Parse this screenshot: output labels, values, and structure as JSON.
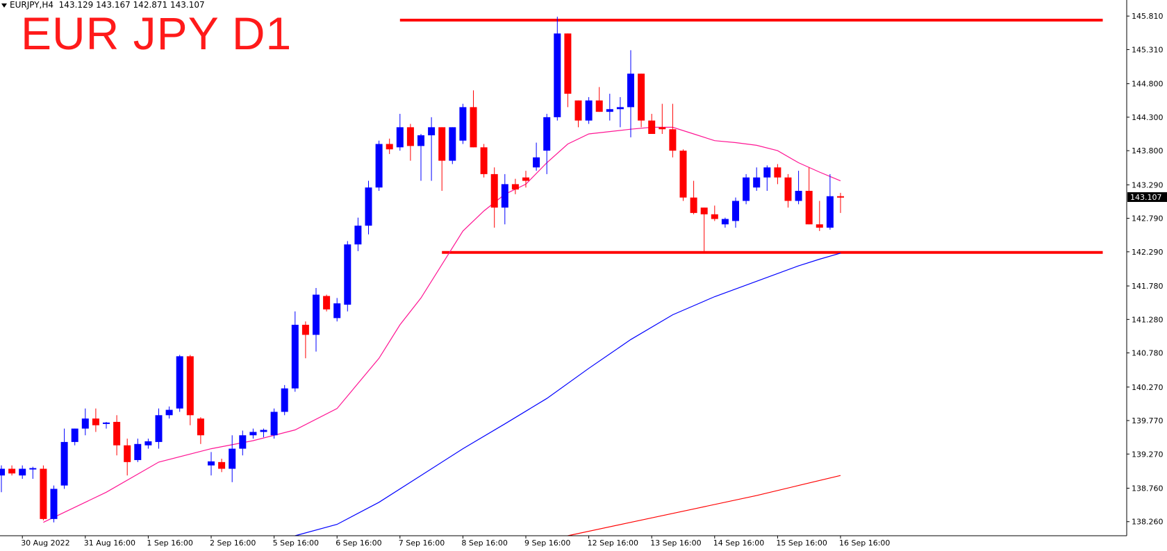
{
  "header": {
    "symbol": "EURJPY,H4",
    "ohlc": "143.129 143.167 142.871 143.107"
  },
  "title_overlay": "EUR JPY D1",
  "colors": {
    "bull": "#0000ff",
    "bear": "#ff0000",
    "ma_fast": "#ff1493",
    "ma_mid": "#0000ff",
    "ma_slow": "#ff0000",
    "levels": "#ff0000",
    "price_tag_bg": "#000000"
  },
  "chart_data": {
    "type": "candlestick",
    "title": "EUR JPY D1",
    "current_price_label": "143.107",
    "ylim": [
      138.05,
      146.05
    ],
    "y_ticks": [
      "145.810",
      "145.310",
      "144.800",
      "144.300",
      "143.800",
      "143.290",
      "142.790",
      "142.290",
      "141.780",
      "141.280",
      "140.780",
      "140.270",
      "139.770",
      "139.270",
      "138.760",
      "138.260"
    ],
    "x_labels": [
      "30 Aug 2022",
      "31 Aug 16:00",
      "1 Sep 16:00",
      "2 Sep 16:00",
      "5 Sep 16:00",
      "6 Sep 16:00",
      "7 Sep 16:00",
      "8 Sep 16:00",
      "9 Sep 16:00",
      "12 Sep 16:00",
      "13 Sep 16:00",
      "14 Sep 16:00",
      "15 Sep 16:00",
      "16 Sep 16:00"
    ],
    "x_label_bar_index": [
      2,
      8,
      14,
      20,
      26,
      32,
      38,
      44,
      50,
      56,
      62,
      68,
      74,
      80
    ],
    "candles": [
      {
        "o": 138.95,
        "h": 139.1,
        "l": 138.7,
        "c": 139.05
      },
      {
        "o": 139.05,
        "h": 139.1,
        "l": 138.95,
        "c": 138.98
      },
      {
        "o": 138.95,
        "h": 139.1,
        "l": 138.9,
        "c": 139.05
      },
      {
        "o": 139.05,
        "h": 139.08,
        "l": 138.9,
        "c": 139.06
      },
      {
        "o": 139.05,
        "h": 139.1,
        "l": 138.28,
        "c": 138.3
      },
      {
        "o": 138.3,
        "h": 138.8,
        "l": 138.25,
        "c": 138.75
      },
      {
        "o": 138.8,
        "h": 139.65,
        "l": 138.75,
        "c": 139.45
      },
      {
        "o": 139.45,
        "h": 139.65,
        "l": 139.4,
        "c": 139.65
      },
      {
        "o": 139.65,
        "h": 139.95,
        "l": 139.55,
        "c": 139.8
      },
      {
        "o": 139.8,
        "h": 139.95,
        "l": 139.6,
        "c": 139.7
      },
      {
        "o": 139.73,
        "h": 139.75,
        "l": 139.65,
        "c": 139.74
      },
      {
        "o": 139.75,
        "h": 139.85,
        "l": 139.25,
        "c": 139.4
      },
      {
        "o": 139.4,
        "h": 139.5,
        "l": 138.95,
        "c": 139.15
      },
      {
        "o": 139.18,
        "h": 139.5,
        "l": 139.15,
        "c": 139.42
      },
      {
        "o": 139.4,
        "h": 139.5,
        "l": 139.35,
        "c": 139.46
      },
      {
        "o": 139.45,
        "h": 139.95,
        "l": 139.35,
        "c": 139.85
      },
      {
        "o": 139.85,
        "h": 139.98,
        "l": 139.8,
        "c": 139.93
      },
      {
        "o": 139.95,
        "h": 140.75,
        "l": 139.9,
        "c": 140.73
      },
      {
        "o": 140.73,
        "h": 140.75,
        "l": 139.7,
        "c": 139.85
      },
      {
        "o": 139.8,
        "h": 139.82,
        "l": 139.42,
        "c": 139.55
      },
      {
        "o": 139.1,
        "h": 139.3,
        "l": 138.95,
        "c": 139.16
      },
      {
        "o": 139.15,
        "h": 139.2,
        "l": 139.0,
        "c": 139.05
      },
      {
        "o": 139.05,
        "h": 139.55,
        "l": 138.85,
        "c": 139.35
      },
      {
        "o": 139.35,
        "h": 139.62,
        "l": 139.25,
        "c": 139.55
      },
      {
        "o": 139.55,
        "h": 139.65,
        "l": 139.5,
        "c": 139.6
      },
      {
        "o": 139.6,
        "h": 139.65,
        "l": 139.52,
        "c": 139.63
      },
      {
        "o": 139.55,
        "h": 139.95,
        "l": 139.5,
        "c": 139.9
      },
      {
        "o": 139.9,
        "h": 140.3,
        "l": 139.85,
        "c": 140.25
      },
      {
        "o": 140.25,
        "h": 141.4,
        "l": 140.2,
        "c": 141.2
      },
      {
        "o": 141.2,
        "h": 141.25,
        "l": 140.7,
        "c": 141.05
      },
      {
        "o": 141.05,
        "h": 141.75,
        "l": 140.8,
        "c": 141.65
      },
      {
        "o": 141.63,
        "h": 141.65,
        "l": 141.4,
        "c": 141.43
      },
      {
        "o": 141.3,
        "h": 141.6,
        "l": 141.25,
        "c": 141.52
      },
      {
        "o": 141.5,
        "h": 142.45,
        "l": 141.4,
        "c": 142.4
      },
      {
        "o": 142.4,
        "h": 142.8,
        "l": 142.3,
        "c": 142.68
      },
      {
        "o": 142.68,
        "h": 143.35,
        "l": 142.55,
        "c": 143.25
      },
      {
        "o": 143.25,
        "h": 143.95,
        "l": 143.2,
        "c": 143.9
      },
      {
        "o": 143.9,
        "h": 143.98,
        "l": 143.75,
        "c": 143.82
      },
      {
        "o": 143.85,
        "h": 144.35,
        "l": 143.8,
        "c": 144.15
      },
      {
        "o": 144.15,
        "h": 144.2,
        "l": 143.65,
        "c": 143.87
      },
      {
        "o": 143.87,
        "h": 144.05,
        "l": 143.35,
        "c": 144.03
      },
      {
        "o": 144.03,
        "h": 144.3,
        "l": 143.35,
        "c": 144.15
      },
      {
        "o": 144.15,
        "h": 144.15,
        "l": 143.2,
        "c": 143.65
      },
      {
        "o": 143.65,
        "h": 144.15,
        "l": 143.6,
        "c": 144.15
      },
      {
        "o": 143.95,
        "h": 144.5,
        "l": 143.9,
        "c": 144.45
      },
      {
        "o": 144.45,
        "h": 144.7,
        "l": 143.85,
        "c": 143.85
      },
      {
        "o": 143.85,
        "h": 143.9,
        "l": 143.4,
        "c": 143.45
      },
      {
        "o": 143.45,
        "h": 143.55,
        "l": 142.65,
        "c": 142.95
      },
      {
        "o": 142.95,
        "h": 143.45,
        "l": 142.7,
        "c": 143.3
      },
      {
        "o": 143.3,
        "h": 143.38,
        "l": 143.15,
        "c": 143.22
      },
      {
        "o": 143.4,
        "h": 143.5,
        "l": 143.25,
        "c": 143.35
      },
      {
        "o": 143.55,
        "h": 143.92,
        "l": 143.5,
        "c": 143.7
      },
      {
        "o": 143.8,
        "h": 144.35,
        "l": 143.45,
        "c": 144.3
      },
      {
        "o": 144.3,
        "h": 145.8,
        "l": 144.25,
        "c": 145.55
      },
      {
        "o": 145.55,
        "h": 145.55,
        "l": 144.45,
        "c": 144.65
      },
      {
        "o": 144.55,
        "h": 144.55,
        "l": 144.15,
        "c": 144.25
      },
      {
        "o": 144.25,
        "h": 144.6,
        "l": 144.2,
        "c": 144.55
      },
      {
        "o": 144.55,
        "h": 144.75,
        "l": 144.38,
        "c": 144.38
      },
      {
        "o": 144.38,
        "h": 144.65,
        "l": 144.25,
        "c": 144.42
      },
      {
        "o": 144.42,
        "h": 144.6,
        "l": 144.15,
        "c": 144.45
      },
      {
        "o": 144.45,
        "h": 145.3,
        "l": 144.0,
        "c": 144.95
      },
      {
        "o": 144.95,
        "h": 144.95,
        "l": 144.15,
        "c": 144.25
      },
      {
        "o": 144.25,
        "h": 144.35,
        "l": 144.05,
        "c": 144.05
      },
      {
        "o": 144.15,
        "h": 144.5,
        "l": 144.05,
        "c": 144.12
      },
      {
        "o": 144.12,
        "h": 144.5,
        "l": 143.7,
        "c": 143.8
      },
      {
        "o": 143.8,
        "h": 143.82,
        "l": 143.05,
        "c": 143.1
      },
      {
        "o": 143.1,
        "h": 143.35,
        "l": 142.85,
        "c": 142.87
      },
      {
        "o": 142.95,
        "h": 142.95,
        "l": 142.3,
        "c": 142.85
      },
      {
        "o": 142.85,
        "h": 142.98,
        "l": 142.75,
        "c": 142.78
      },
      {
        "o": 142.7,
        "h": 142.8,
        "l": 142.65,
        "c": 142.78
      },
      {
        "o": 142.75,
        "h": 143.1,
        "l": 142.65,
        "c": 143.05
      },
      {
        "o": 143.05,
        "h": 143.45,
        "l": 143.0,
        "c": 143.4
      },
      {
        "o": 143.25,
        "h": 143.55,
        "l": 143.2,
        "c": 143.4
      },
      {
        "o": 143.4,
        "h": 143.58,
        "l": 143.2,
        "c": 143.55
      },
      {
        "o": 143.55,
        "h": 143.6,
        "l": 143.3,
        "c": 143.4
      },
      {
        "o": 143.4,
        "h": 143.45,
        "l": 142.95,
        "c": 143.05
      },
      {
        "o": 143.05,
        "h": 143.5,
        "l": 143.0,
        "c": 143.2
      },
      {
        "o": 143.2,
        "h": 143.55,
        "l": 142.7,
        "c": 142.7
      },
      {
        "o": 142.7,
        "h": 143.05,
        "l": 142.6,
        "c": 142.65
      },
      {
        "o": 142.65,
        "h": 143.45,
        "l": 142.62,
        "c": 143.12
      },
      {
        "o": 143.12,
        "h": 143.17,
        "l": 142.87,
        "c": 143.107
      }
    ],
    "ma_fast": [
      [
        4,
        138.25
      ],
      [
        10,
        138.7
      ],
      [
        15,
        139.15
      ],
      [
        20,
        139.35
      ],
      [
        24,
        139.47
      ],
      [
        28,
        139.63
      ],
      [
        32,
        139.95
      ],
      [
        36,
        140.7
      ],
      [
        38,
        141.2
      ],
      [
        40,
        141.6
      ],
      [
        42,
        142.1
      ],
      [
        44,
        142.6
      ],
      [
        46,
        142.9
      ],
      [
        48,
        143.15
      ],
      [
        50,
        143.3
      ],
      [
        52,
        143.62
      ],
      [
        54,
        143.9
      ],
      [
        56,
        144.05
      ],
      [
        60,
        144.12
      ],
      [
        62,
        144.15
      ],
      [
        64,
        144.15
      ],
      [
        66,
        144.05
      ],
      [
        68,
        143.95
      ],
      [
        70,
        143.92
      ],
      [
        72,
        143.88
      ],
      [
        74,
        143.8
      ],
      [
        76,
        143.62
      ],
      [
        78,
        143.48
      ],
      [
        80,
        143.35
      ]
    ],
    "ma_mid": [
      [
        28,
        138.05
      ],
      [
        32,
        138.22
      ],
      [
        36,
        138.55
      ],
      [
        40,
        138.95
      ],
      [
        44,
        139.35
      ],
      [
        48,
        139.72
      ],
      [
        52,
        140.1
      ],
      [
        56,
        140.55
      ],
      [
        60,
        140.98
      ],
      [
        64,
        141.35
      ],
      [
        68,
        141.62
      ],
      [
        72,
        141.85
      ],
      [
        76,
        142.08
      ],
      [
        78,
        142.18
      ],
      [
        80,
        142.27
      ]
    ],
    "ma_slow": [
      [
        54,
        138.05
      ],
      [
        60,
        138.25
      ],
      [
        66,
        138.45
      ],
      [
        72,
        138.65
      ],
      [
        76,
        138.8
      ],
      [
        80,
        138.95
      ]
    ],
    "levels": [
      {
        "price": 145.75,
        "from_bar": 38,
        "to_bar": 105
      },
      {
        "price": 142.28,
        "from_bar": 42,
        "to_bar": 105
      }
    ]
  }
}
